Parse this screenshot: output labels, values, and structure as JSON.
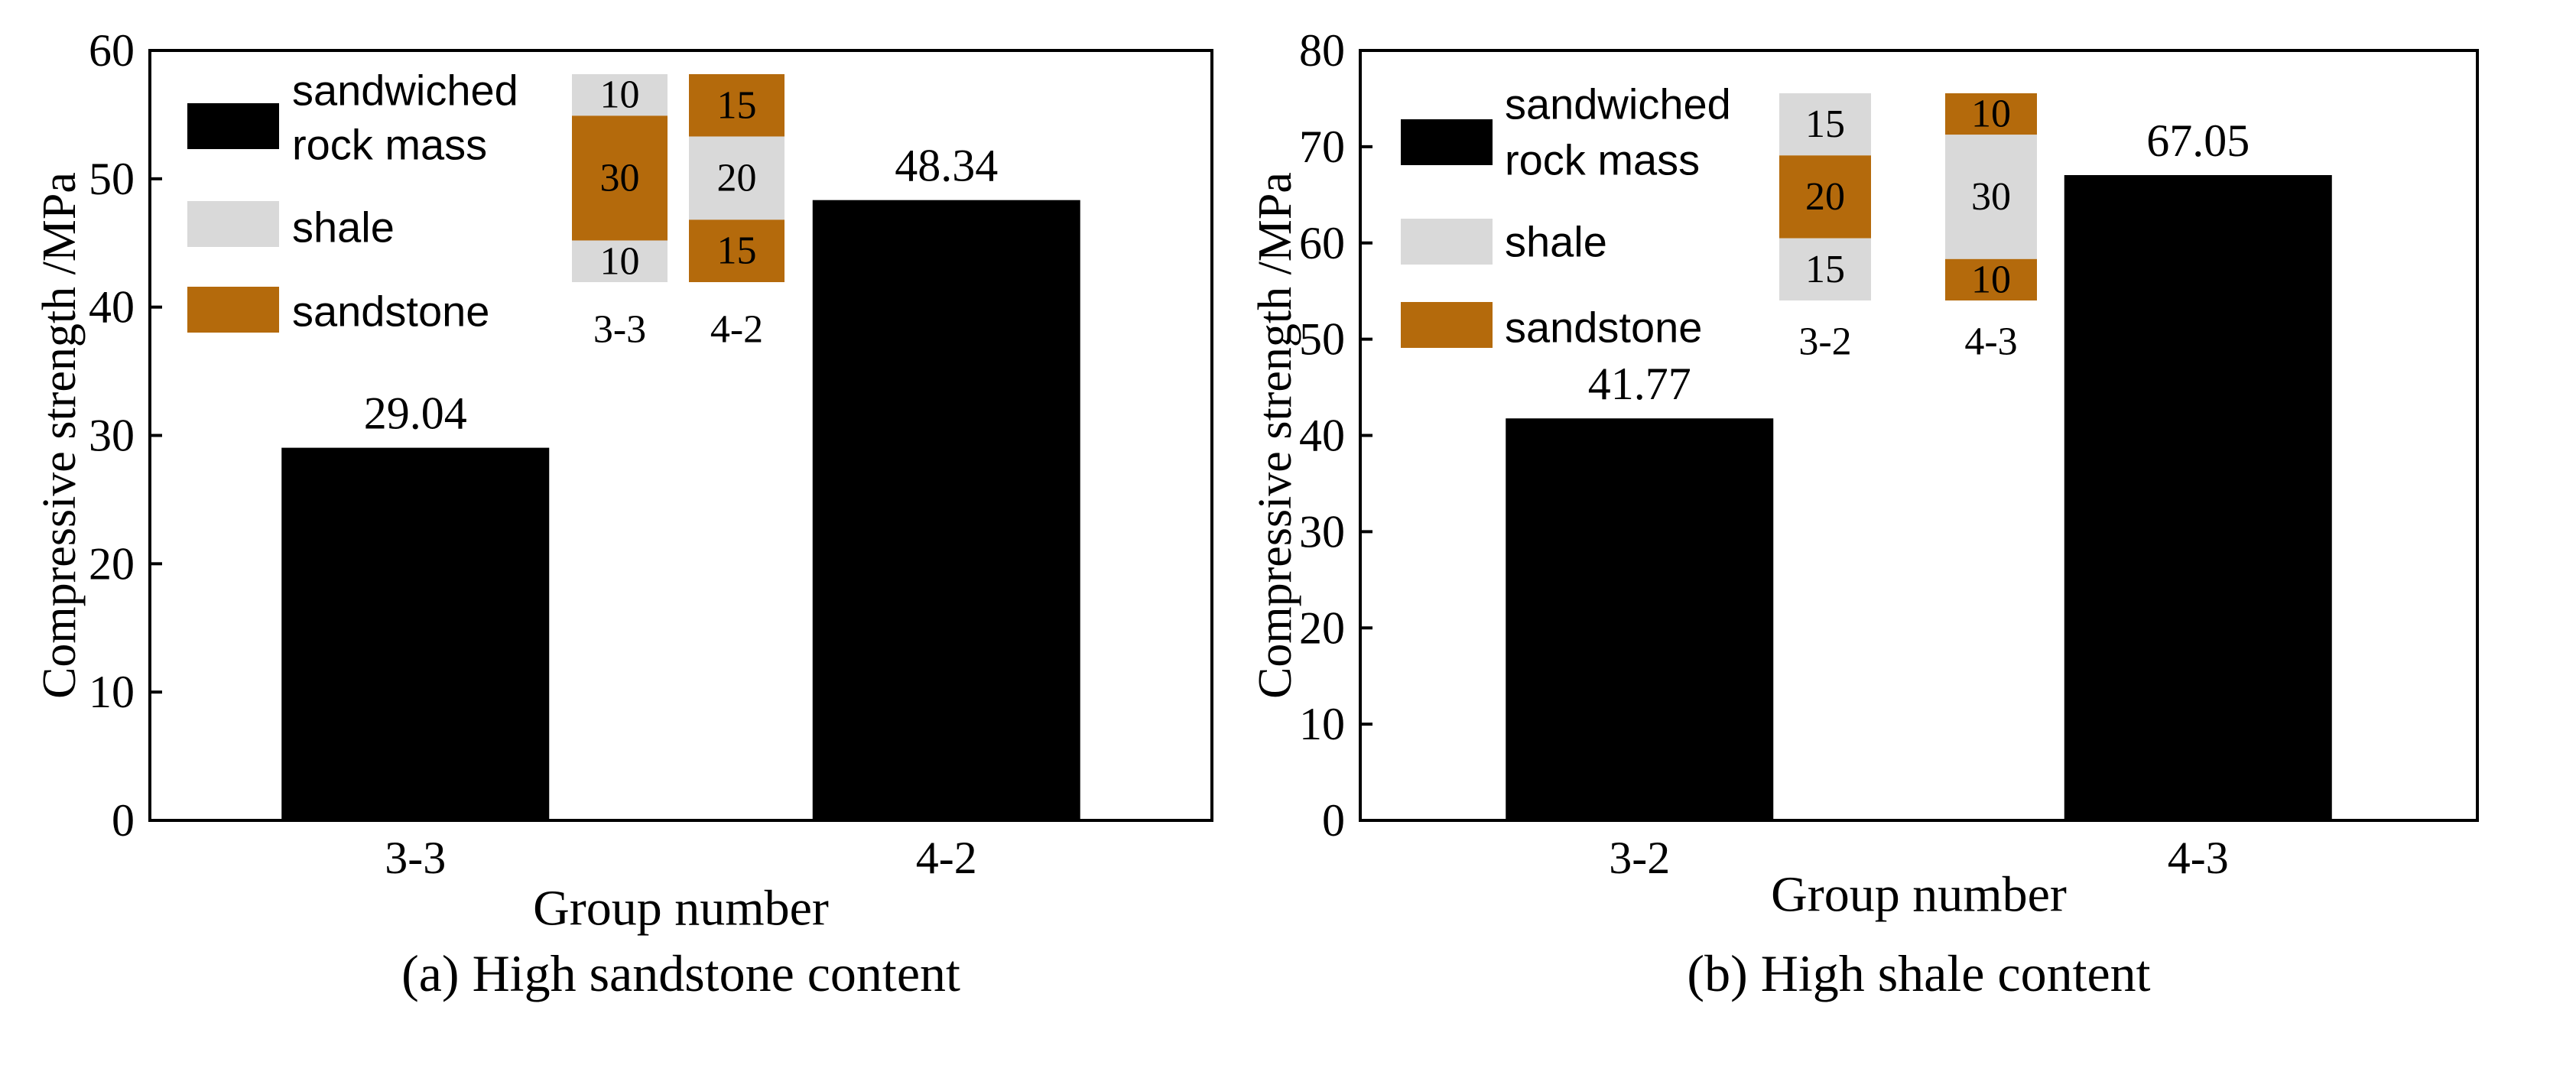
{
  "colors": {
    "bar": "#000000",
    "shale": "#d9d9d9",
    "sandstone": "#b46a0c",
    "axis": "#000000"
  },
  "legend": {
    "sandwiched_line1": "sandwiched",
    "sandwiched_line2": "rock mass",
    "shale": "shale",
    "sandstone": "sandstone"
  },
  "chart_data": [
    {
      "type": "bar",
      "caption": "(a) High sandstone content",
      "xlabel": "Group number",
      "ylabel": "Compressive strength /MPa",
      "ylim": [
        0,
        60
      ],
      "yticks": [
        0,
        10,
        20,
        30,
        40,
        50,
        60
      ],
      "categories": [
        "3-3",
        "4-2"
      ],
      "series": [
        {
          "name": "sandwiched rock mass",
          "values": [
            29.04,
            48.34
          ]
        }
      ],
      "value_labels": [
        "29.04",
        "48.34"
      ],
      "legend_location": "upper-left",
      "inset_specimens": [
        {
          "label": "3-3",
          "layers": [
            {
              "material": "shale",
              "thickness": 10
            },
            {
              "material": "sandstone",
              "thickness": 30
            },
            {
              "material": "shale",
              "thickness": 10
            }
          ]
        },
        {
          "label": "4-2",
          "layers": [
            {
              "material": "sandstone",
              "thickness": 15
            },
            {
              "material": "shale",
              "thickness": 20
            },
            {
              "material": "sandstone",
              "thickness": 15
            }
          ]
        }
      ]
    },
    {
      "type": "bar",
      "caption": "(b) High shale content",
      "xlabel": "Group number",
      "ylabel": "Compressive strength /MPa",
      "ylim": [
        0,
        80
      ],
      "yticks": [
        0,
        10,
        20,
        30,
        40,
        50,
        60,
        70,
        80
      ],
      "categories": [
        "3-2",
        "4-3"
      ],
      "series": [
        {
          "name": "sandwiched rock mass",
          "values": [
            41.77,
            67.05
          ]
        }
      ],
      "value_labels": [
        "41.77",
        "67.05"
      ],
      "legend_location": "upper-left",
      "inset_specimens": [
        {
          "label": "3-2",
          "layers": [
            {
              "material": "shale",
              "thickness": 15
            },
            {
              "material": "sandstone",
              "thickness": 20
            },
            {
              "material": "shale",
              "thickness": 15
            }
          ]
        },
        {
          "label": "4-3",
          "layers": [
            {
              "material": "sandstone",
              "thickness": 10
            },
            {
              "material": "shale",
              "thickness": 30
            },
            {
              "material": "sandstone",
              "thickness": 10
            }
          ]
        }
      ]
    }
  ]
}
